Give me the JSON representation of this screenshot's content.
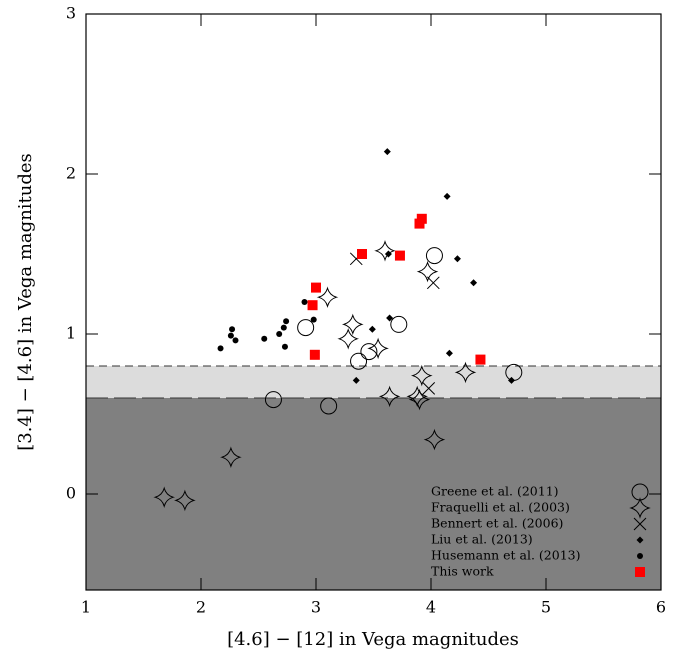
{
  "chart_data": {
    "type": "scatter",
    "x_label": "[4.6] − [12] in Vega magnitudes",
    "y_label": "[3.4] − [4.6] in Vega magnitudes",
    "xlim": [
      1,
      6
    ],
    "ylim": [
      -0.6,
      3
    ],
    "xticks": [
      1,
      2,
      3,
      4,
      5,
      6
    ],
    "yticks": [
      0,
      1,
      2,
      3
    ],
    "hlines": [
      0.8,
      0.6
    ],
    "band_colors": [
      "#dcdcdc",
      "#808080"
    ],
    "legend": "lower right",
    "series": [
      {
        "name": "Greene et al. (2011)",
        "marker": "circle",
        "color": "#000000",
        "x": [
          2.63,
          2.91,
          3.11,
          3.37,
          3.46,
          3.72,
          4.03,
          4.72
        ],
        "values": [
          0.59,
          1.04,
          0.55,
          0.83,
          0.89,
          1.06,
          1.49,
          0.76
        ]
      },
      {
        "name": "Fraquelli et al. (2003)",
        "marker": "star",
        "color": "#000000",
        "x": [
          1.68,
          1.86,
          2.26,
          3.1,
          3.28,
          3.32,
          3.54,
          3.6,
          3.64,
          3.88,
          3.9,
          3.92,
          3.97,
          4.03,
          4.3
        ],
        "values": [
          -0.02,
          -0.04,
          0.23,
          1.23,
          0.97,
          1.06,
          0.91,
          1.52,
          0.61,
          0.61,
          0.59,
          0.74,
          1.39,
          0.34,
          0.76
        ]
      },
      {
        "name": "Bennert et al. (2006)",
        "marker": "cross",
        "color": "#000000",
        "x": [
          3.35,
          4.02,
          3.98
        ],
        "values": [
          1.47,
          1.32,
          0.66
        ]
      },
      {
        "name": "Liu et al. (2013)",
        "marker": "diamond",
        "color": "#000000",
        "x": [
          3.62,
          4.14,
          4.23,
          3.63,
          4.37,
          3.64,
          3.49,
          3.35,
          4.16,
          4.7
        ],
        "values": [
          2.14,
          1.86,
          1.47,
          1.5,
          1.32,
          1.1,
          1.03,
          0.71,
          0.88,
          0.71
        ]
      },
      {
        "name": "Husemann et al. (2013)",
        "marker": "dot",
        "color": "#000000",
        "x": [
          2.17,
          2.27,
          2.26,
          2.3,
          2.55,
          2.68,
          2.72,
          2.74,
          2.73,
          2.9,
          2.98
        ],
        "values": [
          0.91,
          1.03,
          0.99,
          0.96,
          0.97,
          1.0,
          1.04,
          1.08,
          0.92,
          1.2,
          1.09
        ]
      },
      {
        "name": "This work",
        "marker": "square",
        "color": "#ff0000",
        "x": [
          3.0,
          2.97,
          2.99,
          3.4,
          3.73,
          3.92,
          3.9,
          4.43
        ],
        "values": [
          1.29,
          1.18,
          0.87,
          1.5,
          1.49,
          1.72,
          1.69,
          0.84
        ]
      }
    ]
  }
}
